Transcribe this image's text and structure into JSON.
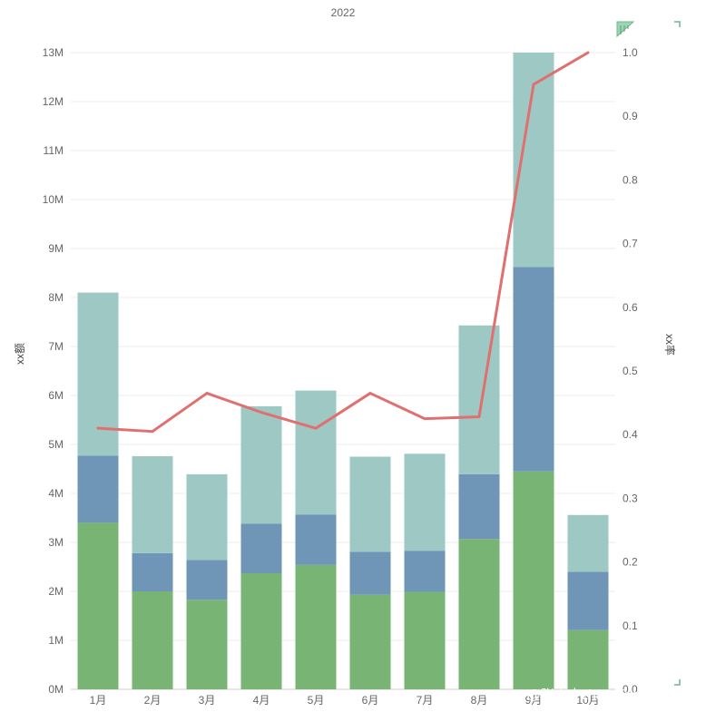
{
  "chart_data": {
    "type": "bar",
    "title": "2022",
    "ylabel_left": "xx额",
    "ylabel_right": "xx率",
    "categories": [
      "1月",
      "2月",
      "3月",
      "4月",
      "5月",
      "6月",
      "7月",
      "8月",
      "9月",
      "10月"
    ],
    "stacked": true,
    "series": [
      {
        "name": "",
        "kind": "bar",
        "color": "#78b473",
        "values": [
          3.4,
          2.0,
          1.83,
          2.37,
          2.54,
          1.93,
          1.99,
          3.07,
          4.45,
          1.21
        ]
      },
      {
        "name": "",
        "kind": "bar",
        "color": "#6f96b7",
        "values": [
          1.37,
          0.78,
          0.81,
          1.01,
          1.03,
          0.88,
          0.84,
          1.32,
          4.17,
          1.19
        ]
      },
      {
        "name": "",
        "kind": "bar",
        "color": "#9dc8c3",
        "values": [
          3.33,
          1.98,
          1.75,
          2.4,
          2.53,
          1.94,
          1.98,
          3.04,
          4.38,
          1.16
        ]
      },
      {
        "name": "",
        "kind": "line",
        "axis": "right",
        "color": "#e07070",
        "values": [
          0.41,
          0.405,
          0.465,
          0.435,
          0.41,
          0.465,
          0.425,
          0.428,
          0.95,
          1.0
        ]
      }
    ],
    "ylim_left": [
      0,
      13
    ],
    "yticks_left": [
      "0M",
      "1M",
      "2M",
      "3M",
      "4M",
      "5M",
      "6M",
      "7M",
      "8M",
      "9M",
      "10M",
      "11M",
      "12M",
      "13M"
    ],
    "ylim_right": [
      0,
      1.0
    ],
    "yticks_right": [
      "0.0",
      "0.1",
      "0.2",
      "0.3",
      "0.4",
      "0.5",
      "0.6",
      "0.7",
      "0.8",
      "0.9",
      "1.0"
    ],
    "grid": true,
    "legend": "none"
  },
  "watermark": "CSDN @张六十zhangliushi"
}
